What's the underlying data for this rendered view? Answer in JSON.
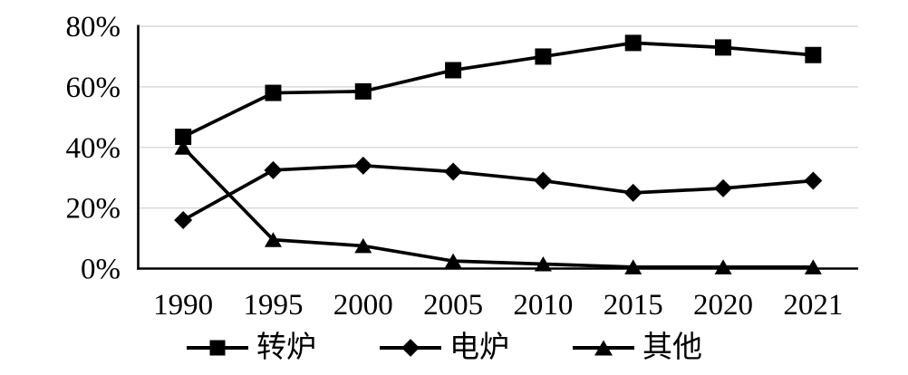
{
  "chart_data": {
    "type": "line",
    "title": "",
    "xlabel": "",
    "ylabel": "",
    "categories": [
      "1990",
      "1995",
      "2000",
      "2005",
      "2010",
      "2015",
      "2020",
      "2021"
    ],
    "series": [
      {
        "name": "转炉",
        "marker": "square",
        "values": [
          43.5,
          58,
          58.5,
          65.5,
          70,
          74.5,
          73,
          70.5
        ]
      },
      {
        "name": "电炉",
        "marker": "diamond",
        "values": [
          16,
          32.5,
          34,
          32,
          29,
          25,
          26.5,
          29
        ]
      },
      {
        "name": "其他",
        "marker": "triangle",
        "values": [
          40,
          9.5,
          7.5,
          2.5,
          1.5,
          0.5,
          0.5,
          0.5
        ]
      }
    ],
    "ylim": [
      0,
      80
    ],
    "ytick_step": 20,
    "ytick_labels": [
      "0%",
      "20%",
      "40%",
      "60%",
      "80%"
    ],
    "grid": true,
    "legend_position": "bottom",
    "line_color": "#000000",
    "axis_color": "#000000",
    "gridline_color": "#d9d9d9",
    "label_color": "#000000"
  }
}
